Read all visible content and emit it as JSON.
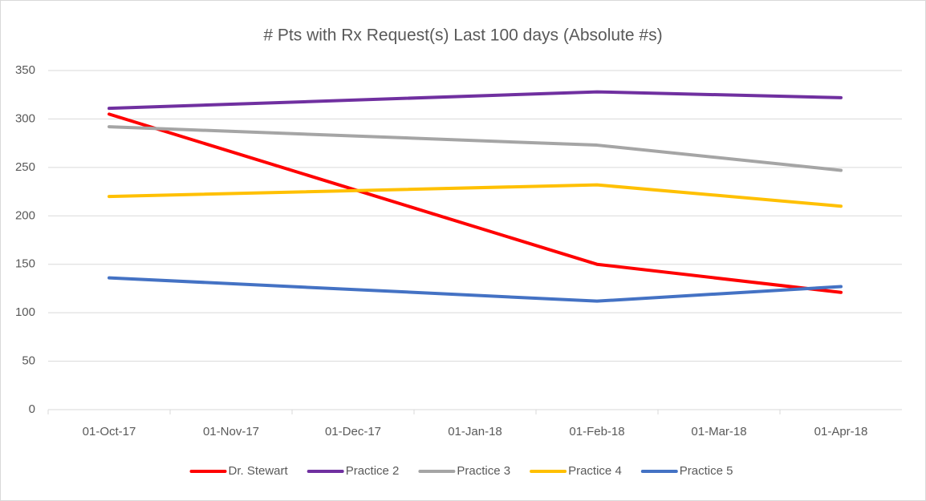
{
  "chart_data": {
    "type": "line",
    "title": "# Pts with Rx Request(s) Last 100 days (Absolute #s)",
    "x": [
      "2017-10-01",
      "2018-02-01",
      "2018-04-01"
    ],
    "xlim": [
      "2017-10-01",
      "2018-04-01"
    ],
    "xticks": [
      {
        "value": "2017-10-01",
        "label": "01-Oct-17"
      },
      {
        "value": "2017-11-01",
        "label": "01-Nov-17"
      },
      {
        "value": "2017-12-01",
        "label": "01-Dec-17"
      },
      {
        "value": "2018-01-01",
        "label": "01-Jan-18"
      },
      {
        "value": "2018-02-01",
        "label": "01-Feb-18"
      },
      {
        "value": "2018-03-01",
        "label": "01-Mar-18"
      },
      {
        "value": "2018-04-01",
        "label": "01-Apr-18"
      }
    ],
    "ylim": [
      0,
      350
    ],
    "yticks": [
      0,
      50,
      100,
      150,
      200,
      250,
      300,
      350
    ],
    "grid": true,
    "legend": "bottom",
    "series": [
      {
        "name": "Dr. Stewart",
        "color": "#ff0000",
        "values": [
          305,
          150,
          121
        ]
      },
      {
        "name": "Practice 2",
        "color": "#7030a0",
        "values": [
          311,
          328,
          322
        ]
      },
      {
        "name": "Practice 3",
        "color": "#a5a5a5",
        "values": [
          292,
          273,
          247
        ]
      },
      {
        "name": "Practice 4",
        "color": "#ffc000",
        "values": [
          220,
          232,
          210
        ]
      },
      {
        "name": "Practice 5",
        "color": "#4472c4",
        "values": [
          136,
          112,
          127
        ]
      }
    ]
  }
}
